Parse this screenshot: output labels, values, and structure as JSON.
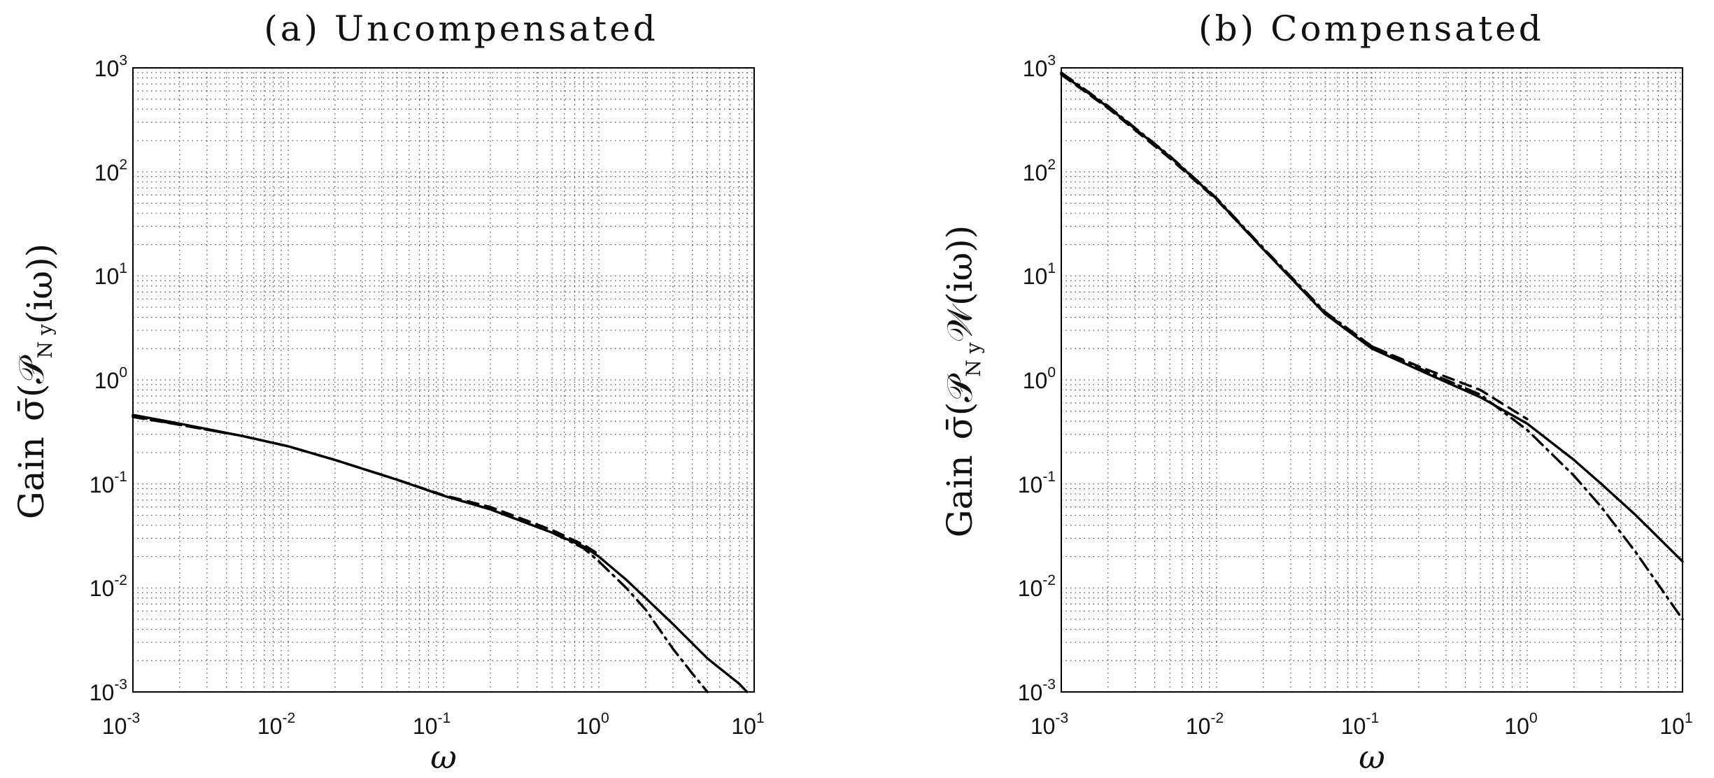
{
  "chart_data": [
    {
      "type": "line",
      "title": "(a) Uncompensated",
      "xlabel": "ω",
      "ylabel": {
        "prefix": "Gain",
        "sigma": "σ̄",
        "open": "(",
        "P": "𝒫",
        "sub": "N y",
        "W": "",
        "arg": "(iω)",
        "close": ")"
      },
      "xscale": "log",
      "yscale": "log",
      "xlim": [
        0.001,
        10
      ],
      "ylim": [
        0.001,
        1000
      ],
      "grid": true,
      "xticks": [
        {
          "base": "10",
          "exp": "-3"
        },
        {
          "base": "10",
          "exp": "-2"
        },
        {
          "base": "10",
          "exp": "-1"
        },
        {
          "base": "10",
          "exp": "0"
        },
        {
          "base": "10",
          "exp": "1"
        }
      ],
      "yticks": [
        {
          "base": "10",
          "exp": "-3"
        },
        {
          "base": "10",
          "exp": "-2"
        },
        {
          "base": "10",
          "exp": "-1"
        },
        {
          "base": "10",
          "exp": "0"
        },
        {
          "base": "10",
          "exp": "1"
        },
        {
          "base": "10",
          "exp": "2"
        },
        {
          "base": "10",
          "exp": "3"
        }
      ],
      "series": [
        {
          "style": "solid",
          "x": [
            0.001,
            0.002,
            0.005,
            0.01,
            0.02,
            0.05,
            0.1,
            0.2,
            0.5,
            0.8,
            1.0,
            1.5,
            2.0,
            3.0,
            5.0,
            8.0,
            9.0
          ],
          "y": [
            0.46,
            0.38,
            0.29,
            0.23,
            0.17,
            0.11,
            0.077,
            0.057,
            0.034,
            0.025,
            0.02,
            0.012,
            0.008,
            0.0045,
            0.0021,
            0.0012,
            0.001
          ]
        },
        {
          "style": "dashed",
          "x": [
            0.001,
            0.002,
            0.005,
            0.01,
            0.02,
            0.05,
            0.1,
            0.2,
            0.5,
            0.8,
            1.0
          ],
          "y": [
            0.44,
            0.37,
            0.29,
            0.23,
            0.17,
            0.11,
            0.078,
            0.06,
            0.036,
            0.026,
            0.021
          ]
        },
        {
          "style": "dashdot",
          "x": [
            0.001,
            0.002,
            0.005,
            0.01,
            0.02,
            0.05,
            0.1,
            0.2,
            0.5,
            0.8,
            1.0,
            1.5,
            2.0,
            3.0,
            4.0,
            5.0
          ],
          "y": [
            0.45,
            0.37,
            0.29,
            0.23,
            0.17,
            0.11,
            0.077,
            0.057,
            0.034,
            0.024,
            0.018,
            0.01,
            0.0062,
            0.0026,
            0.0015,
            0.001
          ]
        }
      ]
    },
    {
      "type": "line",
      "title": "(b) Compensated",
      "xlabel": "ω",
      "ylabel": {
        "prefix": "Gain",
        "sigma": "σ̄",
        "open": "(",
        "P": "𝒫",
        "sub": "N y",
        "W": "𝒲",
        "arg": "(iω)",
        "close": ")"
      },
      "xscale": "log",
      "yscale": "log",
      "xlim": [
        0.001,
        10
      ],
      "ylim": [
        0.001,
        1000
      ],
      "grid": true,
      "xticks": [
        {
          "base": "10",
          "exp": "-3"
        },
        {
          "base": "10",
          "exp": "-2"
        },
        {
          "base": "10",
          "exp": "-1"
        },
        {
          "base": "10",
          "exp": "0"
        },
        {
          "base": "10",
          "exp": "1"
        }
      ],
      "yticks": [
        {
          "base": "10",
          "exp": "-3"
        },
        {
          "base": "10",
          "exp": "-2"
        },
        {
          "base": "10",
          "exp": "-1"
        },
        {
          "base": "10",
          "exp": "0"
        },
        {
          "base": "10",
          "exp": "1"
        },
        {
          "base": "10",
          "exp": "2"
        },
        {
          "base": "10",
          "exp": "3"
        }
      ],
      "series": [
        {
          "style": "solid",
          "x": [
            0.001,
            0.002,
            0.005,
            0.01,
            0.02,
            0.05,
            0.1,
            0.2,
            0.5,
            1.0,
            2.0,
            3.0,
            5.0,
            10.0
          ],
          "y": [
            880,
            420,
            140,
            55,
            18,
            4.3,
            2.0,
            1.25,
            0.68,
            0.38,
            0.17,
            0.1,
            0.05,
            0.018
          ]
        },
        {
          "style": "dashed",
          "x": [
            0.001,
            0.002,
            0.005,
            0.01,
            0.02,
            0.05,
            0.1,
            0.2,
            0.5,
            1.0
          ],
          "y": [
            860,
            410,
            135,
            54,
            18,
            4.4,
            2.1,
            1.35,
            0.8,
            0.42
          ]
        },
        {
          "style": "dashdot",
          "x": [
            0.001,
            0.002,
            0.005,
            0.01,
            0.02,
            0.05,
            0.1,
            0.2,
            0.5,
            1.0,
            2.0,
            3.0,
            5.0,
            10.0
          ],
          "y": [
            900,
            430,
            142,
            56,
            18.5,
            4.5,
            2.1,
            1.3,
            0.72,
            0.33,
            0.12,
            0.06,
            0.022,
            0.005
          ]
        }
      ]
    }
  ]
}
